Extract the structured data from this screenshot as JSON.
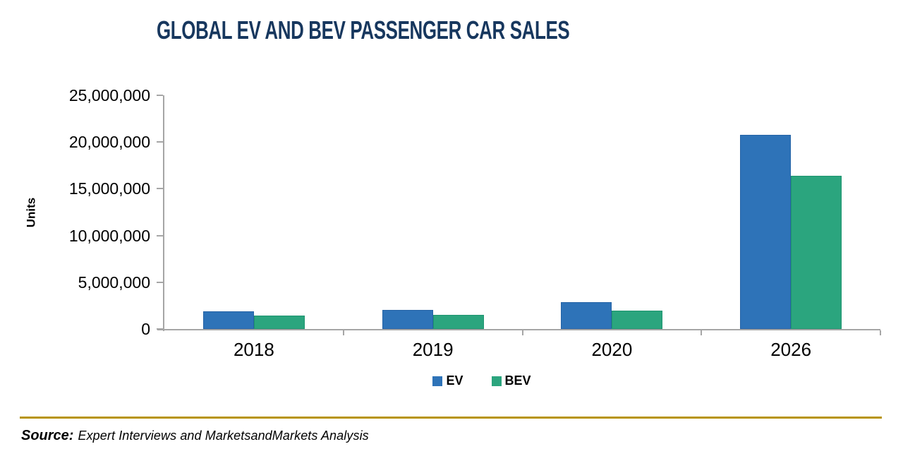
{
  "title": "GLOBAL EV AND BEV PASSENGER CAR SALES",
  "source": {
    "label": "Source:",
    "text": "Expert Interviews and MarketsandMarkets Analysis"
  },
  "colors": {
    "title": "#17375E",
    "axis": "#A6A6A6",
    "ev_bar": "#2E73B8",
    "ev_bar_border": "#2563A6",
    "bev_bar": "#2BA57E",
    "bev_bar_border": "#1E946F",
    "source_rule": "#B8940B",
    "text": "#000000"
  },
  "chart_data": {
    "type": "bar",
    "title": "GLOBAL EV AND BEV PASSENGER CAR SALES",
    "xlabel": "",
    "ylabel": "Units",
    "categories": [
      "2018",
      "2019",
      "2020",
      "2026"
    ],
    "series": [
      {
        "name": "EV",
        "color": "#2E73B8",
        "border": "#2563A6",
        "values": [
          1900000,
          2050000,
          2850000,
          20800000
        ]
      },
      {
        "name": "BEV",
        "color": "#2BA57E",
        "border": "#1E946F",
        "values": [
          1400000,
          1500000,
          1950000,
          16400000
        ]
      }
    ],
    "ylim": [
      0,
      25000000
    ],
    "yticks": [
      0,
      5000000,
      10000000,
      15000000,
      20000000,
      25000000
    ],
    "ytick_labels": [
      "0",
      "5,000,000",
      "10,000,000",
      "15,000,000",
      "20,000,000",
      "25,000,000"
    ],
    "grid": false,
    "legend_position": "bottom"
  }
}
